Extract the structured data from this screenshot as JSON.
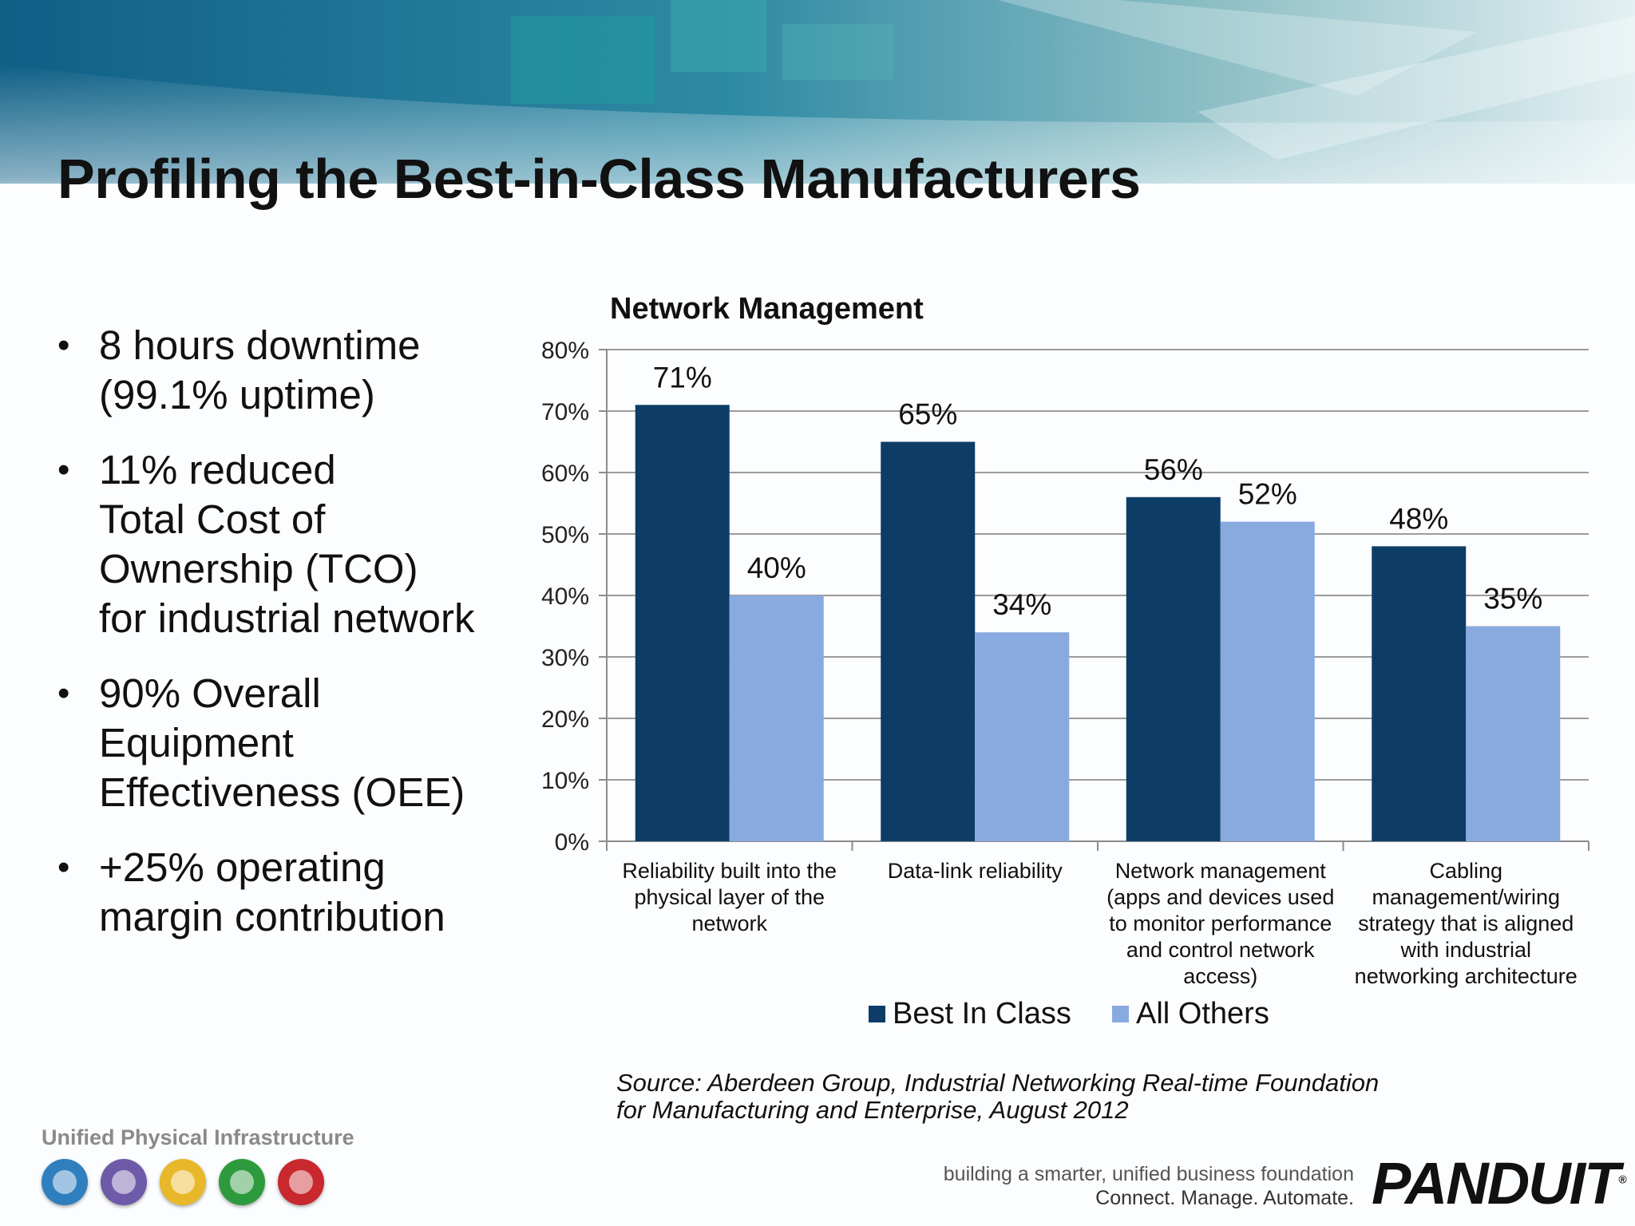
{
  "slide": {
    "title": "Profiling the Best-in-Class Manufacturers",
    "bullets": [
      "8 hours downtime\n(99.1% uptime)",
      "11% reduced\nTotal Cost of\nOwnership (TCO)\nfor industrial network",
      "90% Overall\nEquipment\nEffectiveness (OEE)",
      "+25% operating\nmargin contribution"
    ],
    "bullet_symbol": "•",
    "source": "Source: Aberdeen Group, Industrial Networking Real-time Foundation\nfor Manufacturing and Enterprise, August 2012"
  },
  "footer": {
    "upi_label": "Unified Physical Infrastructure",
    "icon_colors": [
      "#2f7fbf",
      "#6d5aa8",
      "#e8b82a",
      "#2e9a3e",
      "#c8282e"
    ],
    "tagline_line1": "building a smarter, unified business foundation",
    "tagline_line2": "Connect. Manage. Automate.",
    "brand": "PANDUIT",
    "brand_mark": "®"
  },
  "chart_data": {
    "type": "bar",
    "title": "Network Management",
    "categories": [
      [
        "Reliability built into the",
        "physical layer of the",
        "network"
      ],
      [
        "Data-link reliability"
      ],
      [
        "Network management",
        "(apps and devices used",
        "to monitor performance",
        "and control network",
        "access)"
      ],
      [
        "Cabling",
        "management/wiring",
        "strategy that is aligned",
        "with industrial",
        "networking architecture"
      ]
    ],
    "series": [
      {
        "name": "Best In Class",
        "values": [
          71,
          65,
          56,
          48
        ],
        "labels": [
          "71%",
          "65%",
          "56%",
          "48%"
        ],
        "color": "#0d3d67"
      },
      {
        "name": "All Others",
        "values": [
          40,
          34,
          52,
          35
        ],
        "labels": [
          "40%",
          "34%",
          "52%",
          "35%"
        ],
        "color": "#89aadf"
      }
    ],
    "ylim": [
      0,
      80
    ],
    "yticks": [
      "0%",
      "10%",
      "20%",
      "30%",
      "40%",
      "50%",
      "60%",
      "70%",
      "80%"
    ],
    "grid": true,
    "legend_position": "bottom"
  }
}
